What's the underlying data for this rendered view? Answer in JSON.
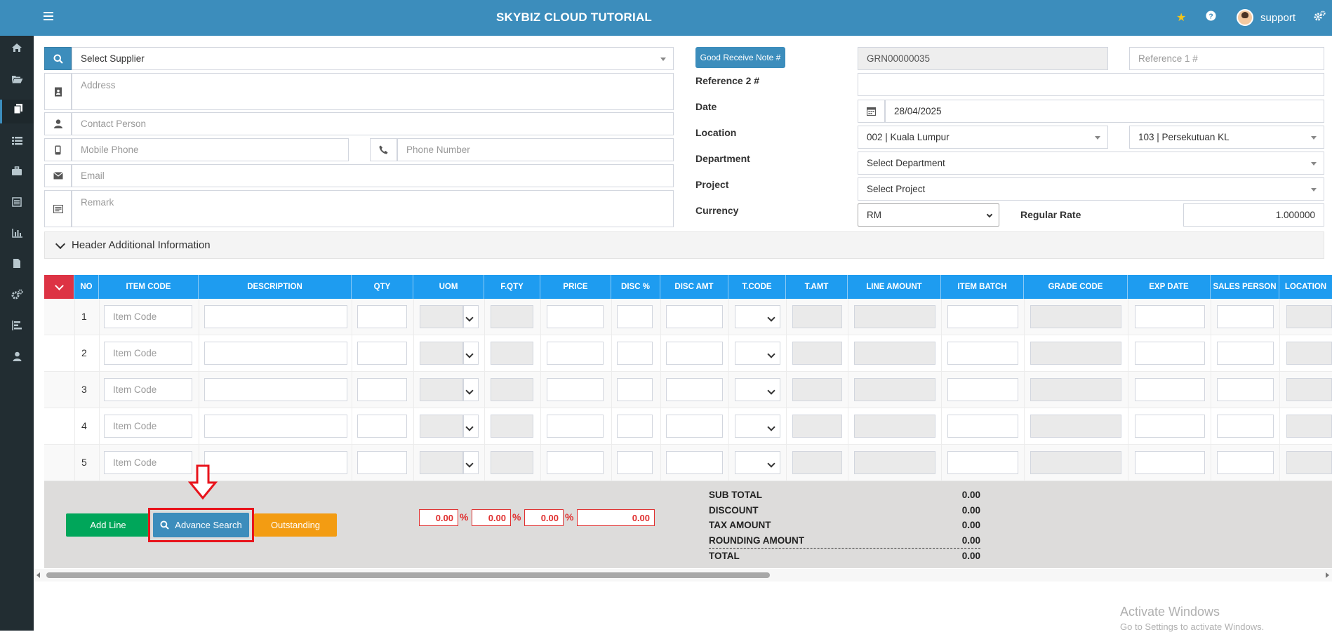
{
  "header": {
    "title": "SKYBIZ CLOUD TUTORIAL",
    "icons": [
      "star-icon",
      "help-icon",
      "gears-icon"
    ],
    "user": "support"
  },
  "sidebar": {
    "items": [
      "home-icon",
      "folder-open-icon",
      "copy-icon",
      "list-icon",
      "briefcase-icon",
      "report-icon",
      "bar-chart-icon",
      "file-icon",
      "cogs-icon",
      "tasks-icon",
      "user-icon"
    ],
    "active_index": 2
  },
  "supplier": {
    "select": "Select Supplier",
    "address_placeholder": "Address",
    "contact_placeholder": "Contact Person",
    "mobile_placeholder": "Mobile Phone",
    "phone_placeholder": "Phone Number",
    "email_placeholder": "Email",
    "remark_placeholder": "Remark"
  },
  "doc": {
    "grn_button": "Good Receive Note #",
    "grn_value": "GRN00000035",
    "ref1_placeholder": "Reference 1 #",
    "ref2_label": "Reference 2 #",
    "date_label": "Date",
    "date_value": "28/04/2025",
    "location_label": "Location",
    "location_value": "002 | Kuala Lumpur",
    "location2_value": "103 | Persekutuan KL",
    "department_label": "Department",
    "department_value": "Select Department",
    "project_label": "Project",
    "project_value": "Select Project",
    "currency_label": "Currency",
    "currency_value": "RM",
    "rate_label": "Regular Rate",
    "rate_value": "1.000000"
  },
  "header_additional": "Header Additional Information",
  "grid": {
    "columns": [
      "NO",
      "ITEM CODE",
      "DESCRIPTION",
      "QTY",
      "UOM",
      "F.QTY",
      "PRICE",
      "DISC %",
      "DISC AMT",
      "T.CODE",
      "T.AMT",
      "LINE AMOUNT",
      "ITEM BATCH",
      "GRADE CODE",
      "EXP DATE",
      "SALES PERSON",
      "LOCATION"
    ],
    "rows": [
      "1",
      "2",
      "3",
      "4",
      "5"
    ],
    "item_code_placeholder": "Item Code"
  },
  "footer": {
    "add_line": "Add Line",
    "advance_search": "Advance Search",
    "outstanding": "Outstanding",
    "disc1": "0.00",
    "disc2": "0.00",
    "disc3": "0.00",
    "disc_amount": "0.00",
    "percent_sign": "%",
    "totals": [
      {
        "label": "SUB TOTAL",
        "value": "0.00"
      },
      {
        "label": "DISCOUNT",
        "value": "0.00"
      },
      {
        "label": "TAX AMOUNT",
        "value": "0.00"
      },
      {
        "label": "ROUNDING AMOUNT",
        "value": "0.00"
      },
      {
        "label": "TOTAL",
        "value": "0.00"
      }
    ]
  },
  "colors": {
    "topbar": "#3c8dbc",
    "sidebar": "#222d32",
    "grid_header": "#1e9cf0",
    "add_line": "#00a65a",
    "advance_search": "#3c8dbc",
    "outstanding": "#f39c12",
    "highlight": "#e8141c"
  },
  "watermark": {
    "line1": "Activate Windows",
    "line2": "Go to Settings to activate Windows."
  }
}
